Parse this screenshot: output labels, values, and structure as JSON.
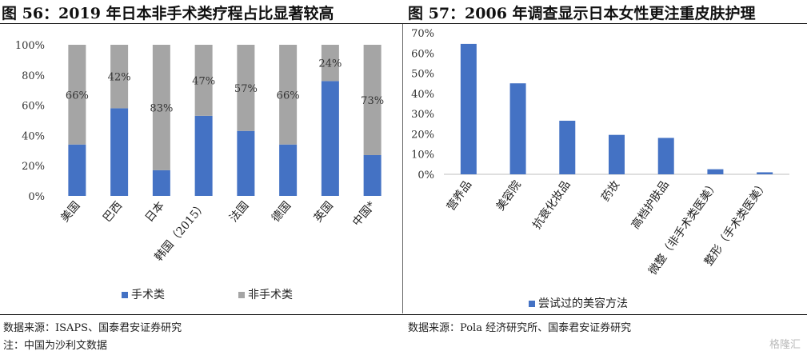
{
  "figures": [
    {
      "title": "图 56：2019 年日本非手术类疗程占比显著较高",
      "source": "数据来源：ISAPS、国泰君安证券研究",
      "note": "注：中国为沙利文数据"
    },
    {
      "title": "图 57：2006 年调查显示日本女性更注重皮肤护理",
      "source": "数据来源：Pola 经济研究所、国泰君安证券研究"
    }
  ],
  "watermark": "格隆汇",
  "chart_data": [
    {
      "type": "bar",
      "stacked": true,
      "percent": true,
      "categories": [
        "美国",
        "巴西",
        "日本",
        "韩国（2015）",
        "法国",
        "德国",
        "英国",
        "中国*"
      ],
      "series": [
        {
          "name": "手术类",
          "color": "#4472C4",
          "values": [
            34,
            58,
            17,
            53,
            43,
            34,
            76,
            27
          ]
        },
        {
          "name": "非手术类",
          "color": "#A5A5A5",
          "values": [
            66,
            42,
            83,
            47,
            57,
            66,
            24,
            73
          ]
        }
      ],
      "data_labels": [
        "66%",
        "42%",
        "83%",
        "47%",
        "57%",
        "66%",
        "24%",
        "73%"
      ],
      "y_ticks": [
        "0%",
        "20%",
        "40%",
        "60%",
        "80%",
        "100%"
      ],
      "ylim": [
        0,
        100
      ],
      "grid": false,
      "legend": "bottom"
    },
    {
      "type": "bar",
      "categories": [
        "营养品",
        "美容院",
        "抗衰化妆品",
        "药妆",
        "高档护肤品",
        "微整（非手术类医美）",
        "整形（手术类医美）"
      ],
      "series": [
        {
          "name": "尝试过的美容方法",
          "color": "#4472C4",
          "values": [
            64.5,
            45,
            26.5,
            19.5,
            18,
            2.5,
            1
          ]
        }
      ],
      "y_ticks": [
        "0%",
        "10%",
        "20%",
        "30%",
        "40%",
        "50%",
        "60%",
        "70%"
      ],
      "ylim": [
        0,
        70
      ],
      "grid": false,
      "legend": "bottom"
    }
  ]
}
